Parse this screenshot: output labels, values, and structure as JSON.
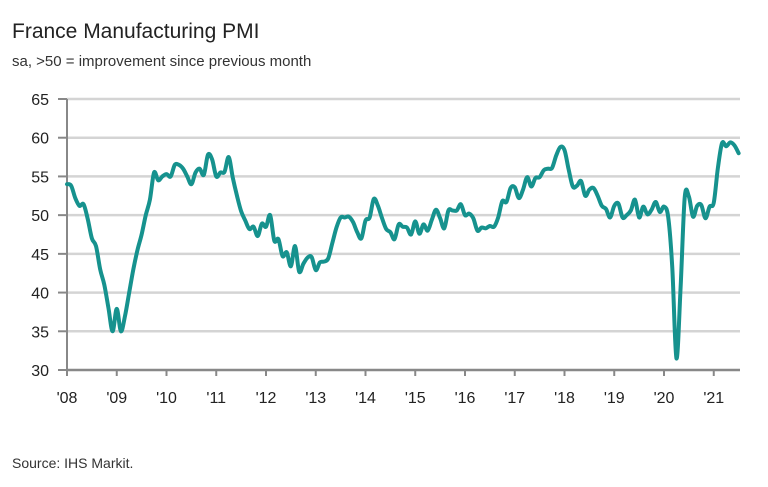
{
  "chart_data": {
    "type": "line",
    "title": "France Manufacturing PMI",
    "subtitle": "sa, >50 = improvement since previous month",
    "source": "Source: IHS Markit.",
    "xlabel": "",
    "ylabel": "",
    "ylim": [
      30,
      65
    ],
    "yticks": [
      30,
      35,
      40,
      45,
      50,
      55,
      60,
      65
    ],
    "xlim": [
      "2008-01",
      "2021-07"
    ],
    "xtick_labels": [
      "'08",
      "'09",
      "'10",
      "'11",
      "'12",
      "'13",
      "'14",
      "'15",
      "'16",
      "'17",
      "'18",
      "'19",
      "'20",
      "'21"
    ],
    "grid": true,
    "line_color": "#16928e",
    "series": [
      {
        "name": "France Manufacturing PMI",
        "start": "2008-01",
        "frequency": "monthly",
        "values": [
          54.0,
          53.8,
          52.2,
          51.2,
          51.4,
          49.5,
          47.0,
          46.0,
          43.0,
          41.0,
          38.0,
          35.0,
          37.9,
          35.0,
          37.0,
          40.0,
          43.0,
          45.5,
          47.5,
          50.0,
          52.0,
          55.5,
          54.5,
          55.0,
          55.3,
          55.0,
          56.5,
          56.5,
          56.0,
          55.0,
          54.0,
          55.5,
          56.0,
          55.2,
          57.8,
          57.2,
          55.0,
          55.5,
          55.6,
          57.5,
          54.8,
          52.5,
          50.5,
          49.3,
          48.2,
          48.5,
          47.3,
          48.9,
          48.5,
          50.0,
          46.7,
          46.9,
          44.7,
          45.2,
          43.4,
          46.0,
          42.7,
          43.7,
          44.5,
          44.6,
          42.9,
          43.9,
          44.0,
          44.4,
          46.4,
          48.4,
          49.7,
          49.7,
          49.8,
          49.1,
          47.8,
          47.0,
          49.3,
          49.7,
          52.1,
          51.2,
          49.6,
          48.2,
          47.8,
          46.9,
          48.8,
          48.5,
          48.4,
          47.5,
          49.2,
          47.6,
          48.8,
          48.0,
          49.4,
          50.7,
          49.6,
          48.3,
          50.6,
          50.6,
          50.6,
          51.4,
          50.0,
          50.2,
          49.6,
          48.0,
          48.4,
          48.3,
          48.6,
          48.5,
          49.7,
          51.8,
          51.7,
          53.5,
          53.6,
          52.2,
          53.3,
          54.9,
          53.7,
          54.8,
          54.9,
          55.8,
          56.0,
          56.1,
          57.7,
          58.8,
          58.4,
          55.9,
          53.7,
          53.8,
          54.4,
          52.5,
          53.3,
          53.5,
          52.5,
          51.2,
          50.8,
          49.7,
          51.2,
          51.5,
          49.7,
          50.0,
          50.6,
          52.0,
          49.7,
          51.1,
          50.1,
          50.7,
          51.7,
          50.4,
          51.1,
          49.8,
          43.2,
          31.5,
          40.6,
          52.3,
          52.4,
          49.8,
          51.2,
          51.3,
          49.6,
          51.1,
          51.6,
          56.1,
          59.3,
          58.9,
          59.4,
          59.0,
          58.0
        ]
      }
    ]
  }
}
